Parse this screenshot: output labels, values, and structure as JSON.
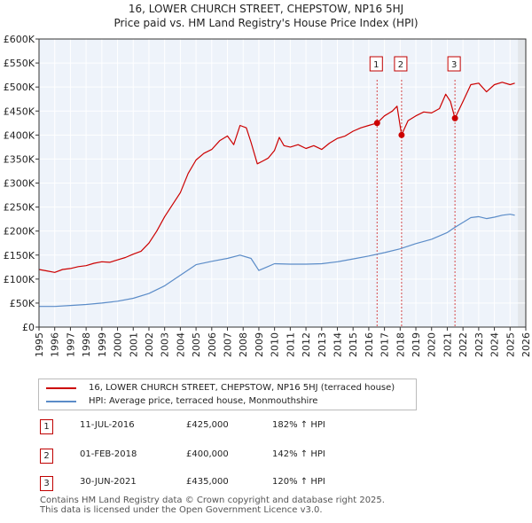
{
  "chart_data": {
    "type": "line",
    "title": "16, LOWER CHURCH STREET, CHEPSTOW, NP16 5HJ",
    "subtitle": "Price paid vs. HM Land Registry's House Price Index (HPI)",
    "xlim": [
      1995,
      2026
    ],
    "ylim": [
      0,
      600000
    ],
    "x_ticks": [
      "1995",
      "1996",
      "1997",
      "1998",
      "1999",
      "2000",
      "2001",
      "2002",
      "2003",
      "2004",
      "2005",
      "2006",
      "2007",
      "2008",
      "2009",
      "2010",
      "2011",
      "2012",
      "2013",
      "2014",
      "2015",
      "2016",
      "2017",
      "2018",
      "2019",
      "2020",
      "2021",
      "2022",
      "2023",
      "2024",
      "2025",
      "2026"
    ],
    "y_ticks": [
      {
        "value": 0,
        "label": "£0"
      },
      {
        "value": 50000,
        "label": "£50K"
      },
      {
        "value": 100000,
        "label": "£100K"
      },
      {
        "value": 150000,
        "label": "£150K"
      },
      {
        "value": 200000,
        "label": "£200K"
      },
      {
        "value": 250000,
        "label": "£250K"
      },
      {
        "value": 300000,
        "label": "£300K"
      },
      {
        "value": 350000,
        "label": "£350K"
      },
      {
        "value": 400000,
        "label": "£400K"
      },
      {
        "value": 450000,
        "label": "£450K"
      },
      {
        "value": 500000,
        "label": "£500K"
      },
      {
        "value": 550000,
        "label": "£550K"
      },
      {
        "value": 600000,
        "label": "£600K"
      }
    ],
    "series": [
      {
        "name": "16, LOWER CHURCH STREET, CHEPSTOW, NP16 5HJ (terraced house)",
        "color": "#cc0000",
        "points": [
          [
            1995.0,
            120000
          ],
          [
            1995.5,
            117000
          ],
          [
            1996.0,
            114000
          ],
          [
            1996.5,
            120000
          ],
          [
            1997.0,
            122000
          ],
          [
            1997.5,
            126000
          ],
          [
            1998.0,
            128000
          ],
          [
            1998.5,
            133000
          ],
          [
            1999.0,
            136000
          ],
          [
            1999.5,
            135000
          ],
          [
            2000.0,
            140000
          ],
          [
            2000.5,
            145000
          ],
          [
            2001.0,
            152000
          ],
          [
            2001.5,
            158000
          ],
          [
            2002.0,
            175000
          ],
          [
            2002.5,
            200000
          ],
          [
            2003.0,
            230000
          ],
          [
            2003.5,
            255000
          ],
          [
            2004.0,
            280000
          ],
          [
            2004.5,
            320000
          ],
          [
            2005.0,
            348000
          ],
          [
            2005.5,
            362000
          ],
          [
            2006.0,
            370000
          ],
          [
            2006.5,
            388000
          ],
          [
            2007.0,
            398000
          ],
          [
            2007.4,
            380000
          ],
          [
            2007.8,
            420000
          ],
          [
            2008.2,
            415000
          ],
          [
            2008.5,
            385000
          ],
          [
            2008.9,
            340000
          ],
          [
            2009.2,
            345000
          ],
          [
            2009.6,
            352000
          ],
          [
            2010.0,
            368000
          ],
          [
            2010.3,
            395000
          ],
          [
            2010.6,
            378000
          ],
          [
            2011.0,
            375000
          ],
          [
            2011.5,
            380000
          ],
          [
            2012.0,
            372000
          ],
          [
            2012.5,
            378000
          ],
          [
            2013.0,
            370000
          ],
          [
            2013.5,
            383000
          ],
          [
            2014.0,
            393000
          ],
          [
            2014.5,
            398000
          ],
          [
            2015.0,
            408000
          ],
          [
            2015.5,
            415000
          ],
          [
            2016.0,
            420000
          ],
          [
            2016.53,
            425000
          ],
          [
            2017.0,
            440000
          ],
          [
            2017.5,
            450000
          ],
          [
            2017.8,
            460000
          ],
          [
            2018.09,
            400000
          ],
          [
            2018.5,
            430000
          ],
          [
            2019.0,
            440000
          ],
          [
            2019.5,
            448000
          ],
          [
            2020.0,
            446000
          ],
          [
            2020.5,
            455000
          ],
          [
            2020.9,
            485000
          ],
          [
            2021.2,
            470000
          ],
          [
            2021.49,
            435000
          ],
          [
            2022.0,
            470000
          ],
          [
            2022.5,
            505000
          ],
          [
            2023.0,
            508000
          ],
          [
            2023.5,
            490000
          ],
          [
            2024.0,
            505000
          ],
          [
            2024.5,
            510000
          ],
          [
            2025.0,
            505000
          ],
          [
            2025.3,
            508000
          ]
        ]
      },
      {
        "name": "HPI: Average price, terraced house, Monmouthshire",
        "color": "#5b8cc8",
        "points": [
          [
            1995.0,
            43000
          ],
          [
            1996.0,
            43000
          ],
          [
            1997.0,
            45000
          ],
          [
            1998.0,
            47000
          ],
          [
            1999.0,
            50000
          ],
          [
            2000.0,
            54000
          ],
          [
            2001.0,
            60000
          ],
          [
            2002.0,
            70000
          ],
          [
            2003.0,
            86000
          ],
          [
            2004.0,
            108000
          ],
          [
            2005.0,
            130000
          ],
          [
            2006.0,
            137000
          ],
          [
            2007.0,
            143000
          ],
          [
            2007.8,
            150000
          ],
          [
            2008.5,
            143000
          ],
          [
            2009.0,
            118000
          ],
          [
            2009.5,
            125000
          ],
          [
            2010.0,
            132000
          ],
          [
            2011.0,
            131000
          ],
          [
            2012.0,
            131000
          ],
          [
            2013.0,
            132000
          ],
          [
            2014.0,
            136000
          ],
          [
            2015.0,
            142000
          ],
          [
            2016.0,
            148000
          ],
          [
            2017.0,
            155000
          ],
          [
            2018.0,
            163000
          ],
          [
            2019.0,
            174000
          ],
          [
            2020.0,
            183000
          ],
          [
            2021.0,
            197000
          ],
          [
            2021.5,
            208000
          ],
          [
            2022.0,
            218000
          ],
          [
            2022.5,
            228000
          ],
          [
            2023.0,
            230000
          ],
          [
            2023.5,
            226000
          ],
          [
            2024.0,
            229000
          ],
          [
            2024.5,
            233000
          ],
          [
            2025.0,
            235000
          ],
          [
            2025.3,
            233000
          ]
        ]
      }
    ],
    "sales": [
      {
        "id": "1",
        "x": 2016.53,
        "price": 425000,
        "date": "11-JUL-2016",
        "price_label": "£425,000",
        "hpi": "182% ↑ HPI"
      },
      {
        "id": "2",
        "x": 2018.09,
        "price": 400000,
        "date": "01-FEB-2018",
        "price_label": "£400,000",
        "hpi": "142% ↑ HPI"
      },
      {
        "id": "3",
        "x": 2021.49,
        "price": 435000,
        "date": "30-JUN-2021",
        "price_label": "£435,000",
        "hpi": "120% ↑ HPI"
      }
    ],
    "shaded_from": 2025.5,
    "legend": [
      {
        "label": "16, LOWER CHURCH STREET, CHEPSTOW, NP16 5HJ (terraced house)",
        "color": "#cc0000"
      },
      {
        "label": "HPI: Average price, terraced house, Monmouthshire",
        "color": "#5b8cc8"
      }
    ]
  },
  "footer": {
    "line1": "Contains HM Land Registry data © Crown copyright and database right 2025.",
    "line2": "This data is licensed under the Open Government Licence v3.0."
  }
}
